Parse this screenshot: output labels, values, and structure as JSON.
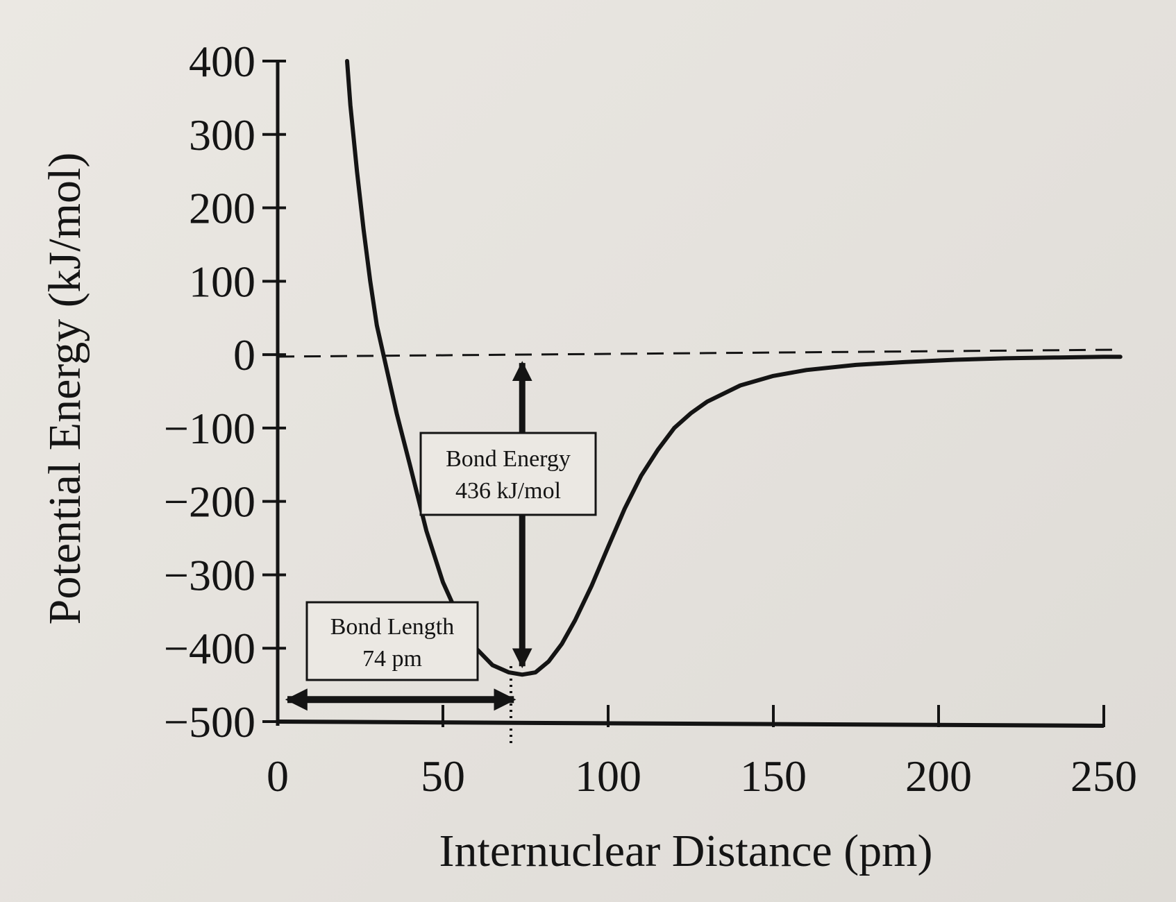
{
  "chart_data": {
    "type": "line",
    "title": "",
    "xlabel": "Internuclear Distance (pm)",
    "ylabel": "Potential Energy (kJ/mol)",
    "xlim": [
      0,
      250
    ],
    "ylim": [
      -500,
      400
    ],
    "x_ticks": [
      0,
      50,
      100,
      150,
      200,
      250
    ],
    "x_tick_labels": [
      "0",
      "50",
      "100",
      "150",
      "200",
      "250"
    ],
    "y_ticks": [
      400,
      300,
      200,
      100,
      0,
      -100,
      -200,
      -300,
      -400,
      -500
    ],
    "y_tick_labels": [
      "400",
      "300",
      "200",
      "100",
      "0",
      "−100",
      "−200",
      "−300",
      "−400",
      "−500"
    ],
    "grid": false,
    "legend": "none",
    "series": [
      {
        "x": [
          21,
          22,
          24,
          26,
          28,
          30,
          33,
          36,
          40,
          45,
          50,
          55,
          60,
          65,
          70,
          74,
          78,
          82,
          86,
          90,
          95,
          100,
          105,
          110,
          115,
          120,
          125,
          130,
          140,
          150,
          160,
          175,
          190,
          205,
          220,
          235,
          250,
          255
        ],
        "y": [
          400,
          340,
          250,
          170,
          100,
          40,
          -20,
          -80,
          -150,
          -240,
          -310,
          -360,
          -400,
          -423,
          -433,
          -436,
          -433,
          -418,
          -394,
          -362,
          -315,
          -262,
          -210,
          -165,
          -130,
          -100,
          -80,
          -64,
          -42,
          -29,
          -21,
          -14,
          -10,
          -7,
          -5,
          -4,
          -3,
          -3
        ]
      }
    ],
    "reference_line": {
      "y": 0,
      "style": "dashed"
    },
    "annotations": [
      {
        "label_line1": "Bond Energy",
        "label_line2": "436 kJ/mol",
        "arrow": "vertical",
        "x": 74,
        "y_from": -436,
        "y_to": 0
      },
      {
        "label_line1": "Bond Length",
        "label_line2": "74 pm",
        "arrow": "horizontal",
        "y": -470,
        "x_from": 0,
        "x_to": 74
      }
    ]
  }
}
